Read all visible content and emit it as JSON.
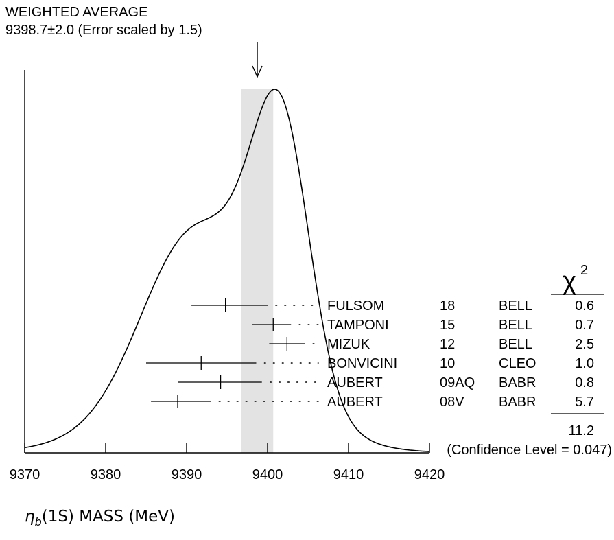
{
  "chart_data": {
    "type": "ideogram",
    "title": "WEIGHTED AVERAGE",
    "subtitle": "9398.7±2.0 (Error scaled by 1.5)",
    "xlabel": {
      "symbol": "η",
      "subscript": "b",
      "rest": "(1S) MASS (MeV)"
    },
    "xlim": [
      9370,
      9420
    ],
    "x_ticks": [
      9370,
      9380,
      9390,
      9400,
      9410,
      9420
    ],
    "tick_labels": [
      "9370",
      "9380",
      "9390",
      "9400",
      "9410",
      "9420"
    ],
    "weighted_average": {
      "value": 9398.7,
      "error": 2.0,
      "scale_factor": 1.5
    },
    "band": [
      9396.7,
      9400.7
    ],
    "chi2_header": "χ",
    "chi2_header_sup": "2",
    "measurements": [
      {
        "author": "FULSOM",
        "year": "18",
        "experiment": "BELL",
        "value": 9394.8,
        "low": 9390.6,
        "high": 9400.0,
        "chi2": "0.6"
      },
      {
        "author": "TAMPONI",
        "year": "15",
        "experiment": "BELL",
        "value": 9400.7,
        "low": 9398.1,
        "high": 9402.9,
        "chi2": "0.7"
      },
      {
        "author": "MIZUK",
        "year": "12",
        "experiment": "BELL",
        "value": 9402.4,
        "low": 9400.2,
        "high": 9404.6,
        "chi2": "2.5"
      },
      {
        "author": "BONVICINI",
        "year": "10",
        "experiment": "CLEO",
        "value": 9391.8,
        "low": 9385.0,
        "high": 9398.6,
        "chi2": "1.0"
      },
      {
        "author": "AUBERT",
        "year": "09AQ",
        "experiment": "BABR",
        "value": 9394.2,
        "low": 9388.9,
        "high": 9399.3,
        "chi2": "0.8"
      },
      {
        "author": "AUBERT",
        "year": "08V",
        "experiment": "BABR",
        "value": 9388.9,
        "low": 9385.6,
        "high": 9393.0,
        "chi2": "5.7"
      }
    ],
    "chi2_total": "11.2",
    "confidence_level": "(Confidence Level = 0.047)",
    "grid": false
  }
}
